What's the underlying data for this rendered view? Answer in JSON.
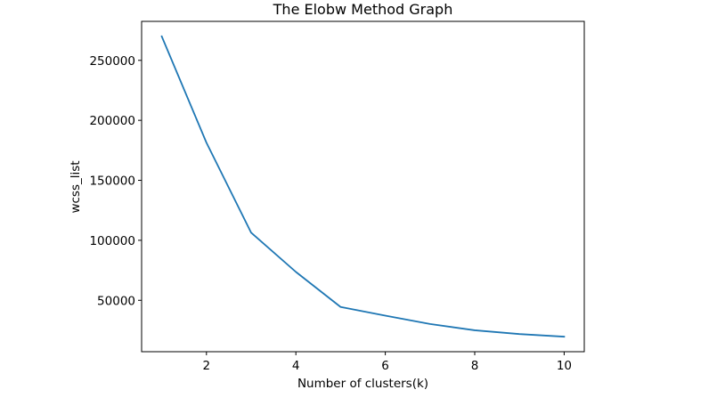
{
  "chart_data": {
    "type": "line",
    "title": "The Elobw Method Graph",
    "xlabel": "Number of clusters(k)",
    "ylabel": "wcss_list",
    "x": [
      1,
      2,
      3,
      4,
      5,
      6,
      7,
      8,
      9,
      10
    ],
    "series": [
      {
        "values": [
          269981,
          181364,
          106348,
          73679,
          44448,
          37234,
          30260,
          25012,
          21850,
          19673
        ]
      }
    ],
    "xlim": [
      0.55,
      10.45
    ],
    "ylim": [
      7158,
      282496
    ],
    "xticks": [
      2,
      4,
      6,
      8,
      10
    ],
    "xtick_labels": [
      "2",
      "4",
      "6",
      "8",
      "10"
    ],
    "yticks": [
      50000,
      100000,
      150000,
      200000,
      250000
    ],
    "ytick_labels": [
      "50000",
      "100000",
      "150000",
      "200000",
      "250000"
    ],
    "grid": false,
    "legend": "none",
    "line_color": "#1f77b4"
  }
}
